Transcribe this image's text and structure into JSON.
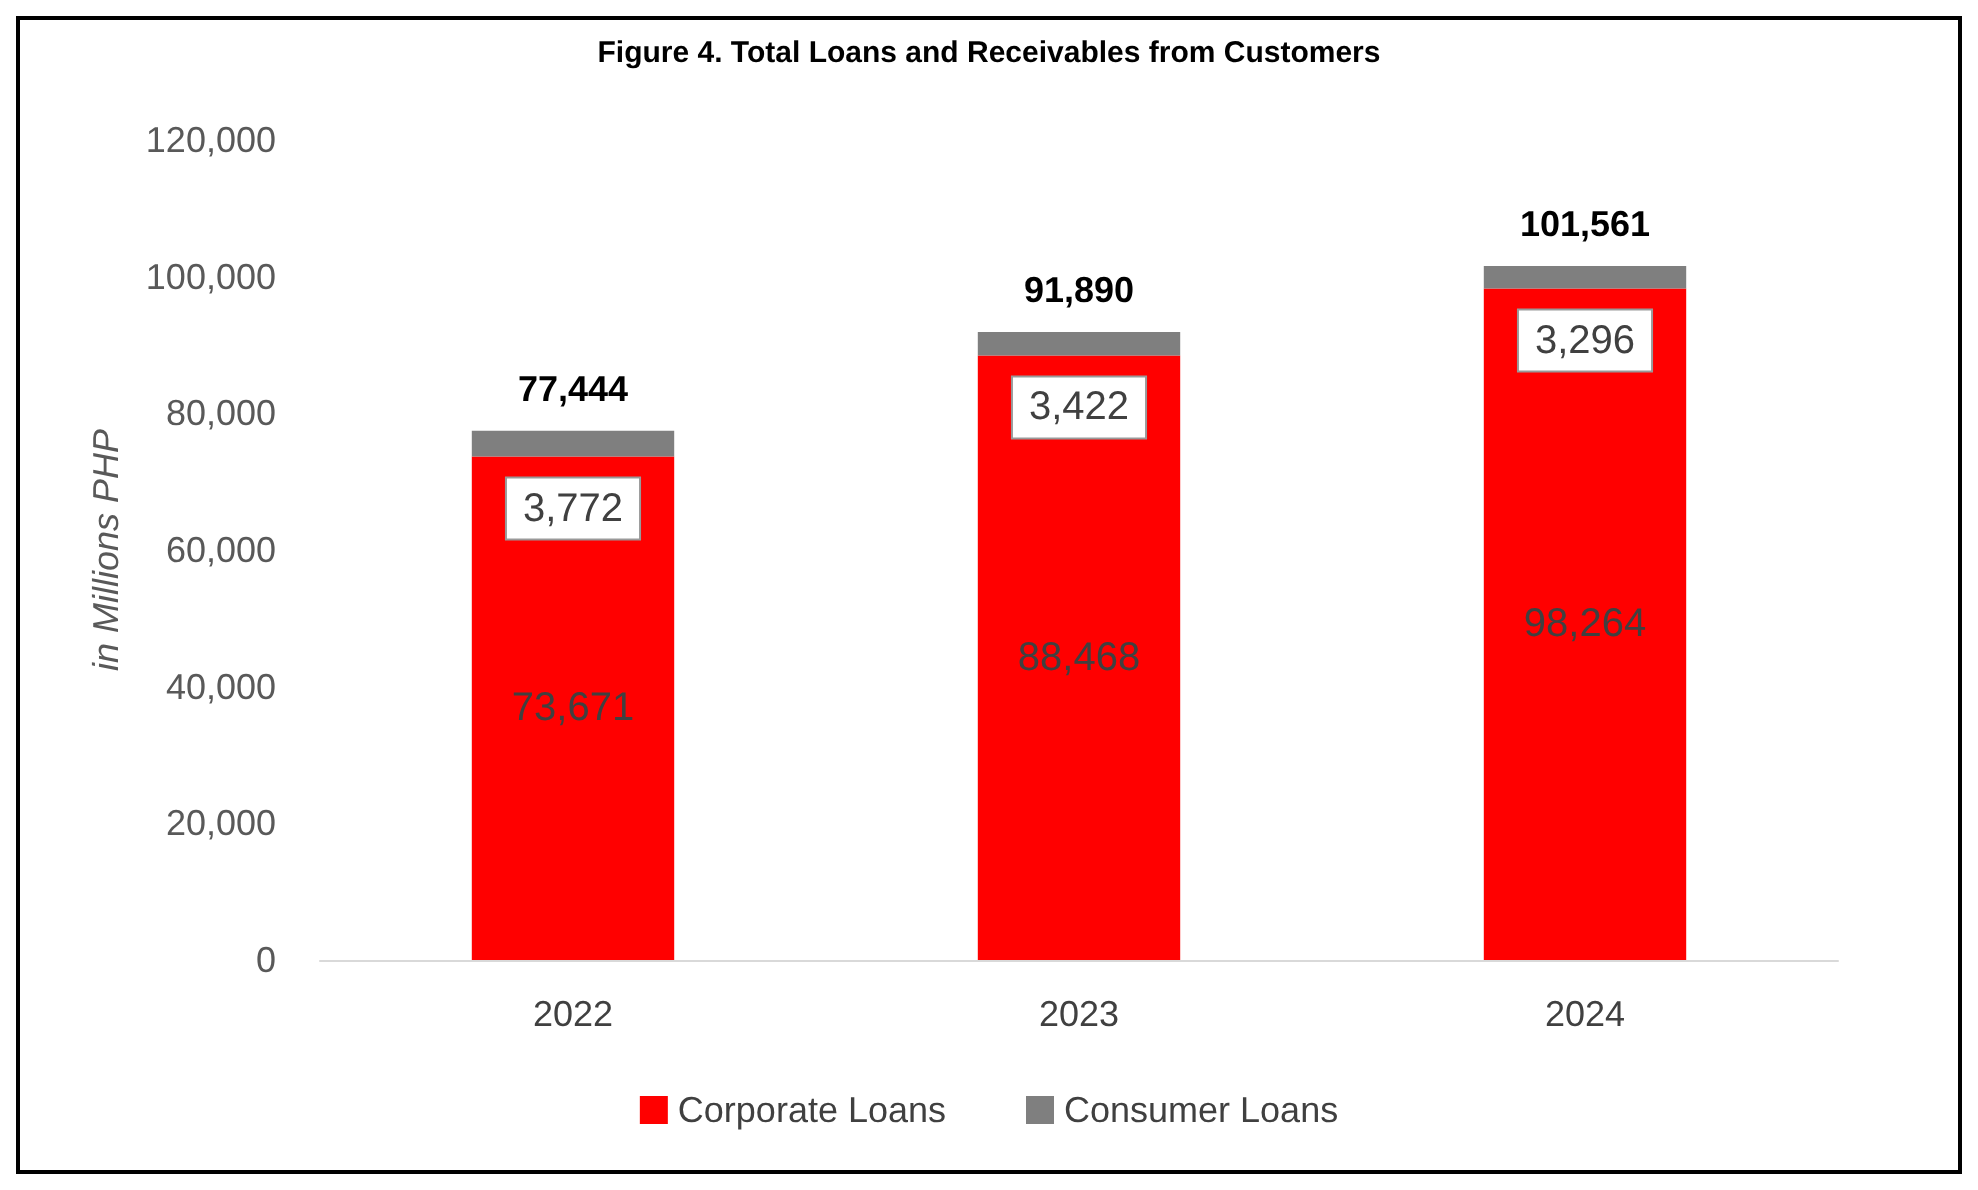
{
  "chart_data": {
    "type": "bar",
    "title": "Figure 4. Total Loans and Receivables from Customers",
    "ylabel": "in Millions PHP",
    "categories": [
      "2022",
      "2023",
      "2024"
    ],
    "stacked": true,
    "series": [
      {
        "name": "Corporate Loans",
        "color": "#ff0000",
        "values": [
          73671,
          88468,
          98264
        ],
        "value_labels": [
          "73,671",
          "88,468",
          "98,264"
        ]
      },
      {
        "name": "Consumer Loans",
        "color": "#7f7f7f",
        "values": [
          3772,
          3422,
          3296
        ],
        "value_labels": [
          "3,772",
          "3,422",
          "3,296"
        ]
      }
    ],
    "ylim": [
      0,
      120000
    ],
    "yticks": [
      0,
      {
        "value": 20000,
        "label": "20,000"
      },
      {
        "value": 40000,
        "label": "40,000"
      },
      {
        "value": 60000,
        "label": "60,000"
      },
      {
        "value": 80000,
        "label": "80,000"
      },
      {
        "value": 100000,
        "label": "100,000"
      },
      {
        "value": 120000,
        "label": "120,000"
      }
    ],
    "grid": false,
    "legend": "bottom",
    "totals": [
      "77,444",
      "91,890",
      "101,561"
    ]
  }
}
